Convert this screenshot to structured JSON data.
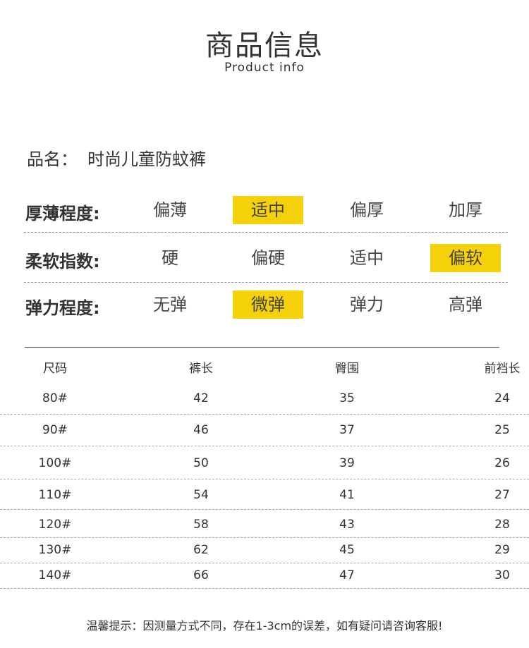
{
  "header": {
    "title": "商品信息",
    "subtitle": "Product info"
  },
  "product": {
    "label": "品名：",
    "name": "时尚儿童防蚊裤"
  },
  "attributes": [
    {
      "label": "厚薄程度:",
      "options": [
        "偏薄",
        "适中",
        "偏厚",
        "加厚"
      ],
      "selected": 1
    },
    {
      "label": "柔软指数:",
      "options": [
        "硬",
        "偏硬",
        "适中",
        "偏软"
      ],
      "selected": 3
    },
    {
      "label": "弹力程度:",
      "options": [
        "无弹",
        "微弹",
        "弹力",
        "高弹"
      ],
      "selected": 1
    }
  ],
  "highlight_color": "#f5d10a",
  "size_table": {
    "columns": [
      "尺码",
      "裤长",
      "臀围",
      "前裆长"
    ],
    "rows": [
      [
        "80#",
        "42",
        "35",
        "24"
      ],
      [
        "90#",
        "46",
        "37",
        "25"
      ],
      [
        "100#",
        "50",
        "39",
        "26"
      ],
      [
        "110#",
        "54",
        "41",
        "27"
      ],
      [
        "120#",
        "58",
        "43",
        "28"
      ],
      [
        "130#",
        "62",
        "45",
        "29"
      ],
      [
        "140#",
        "66",
        "47",
        "30"
      ]
    ]
  },
  "footer": {
    "note": "温馨提示：因测量方式不同，存在1-3cm的误差，如有疑问请咨询客服!"
  }
}
